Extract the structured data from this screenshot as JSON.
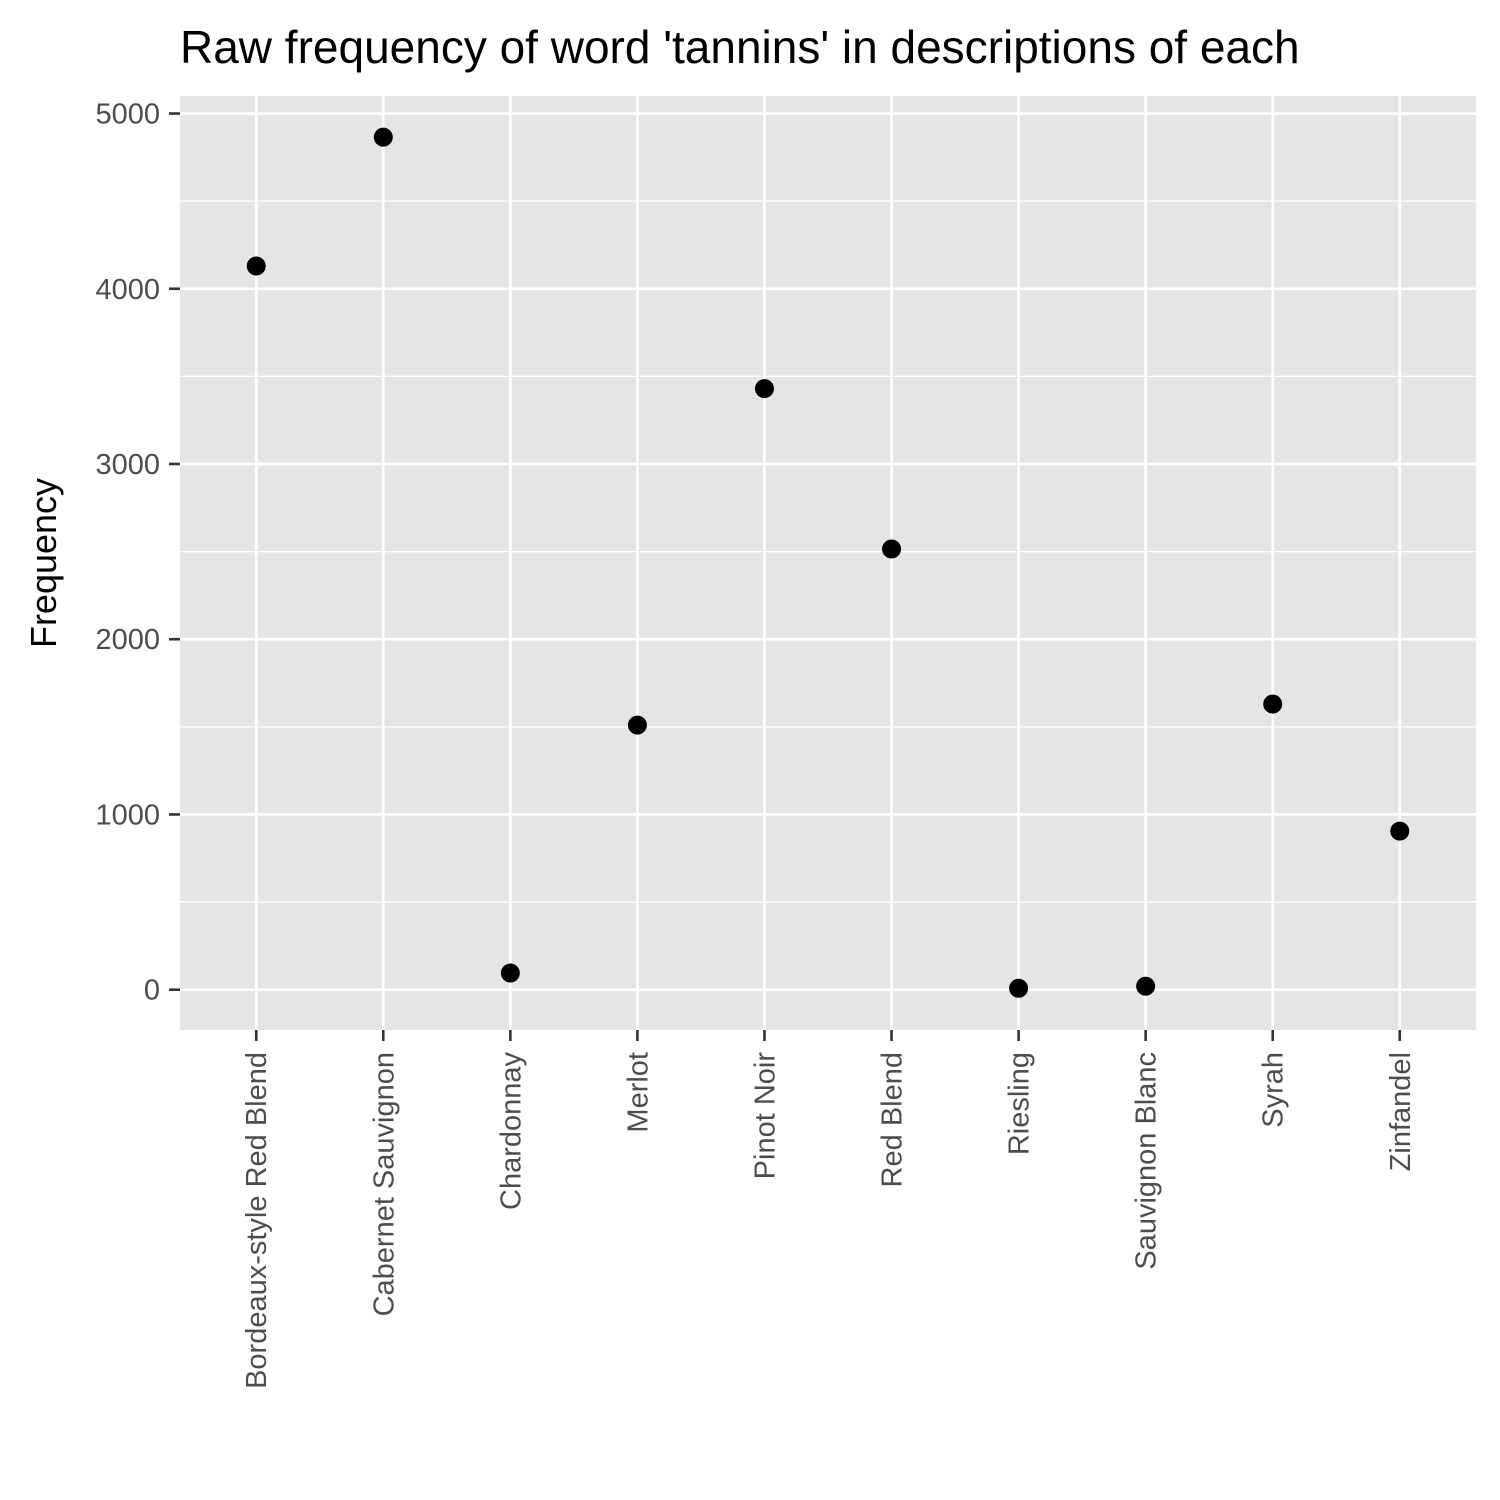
{
  "chart_data": {
    "type": "scatter",
    "title": "Raw frequency of word 'tannins' in descriptions of each",
    "xlabel": "",
    "ylabel": "Frequency",
    "categories": [
      "Bordeaux-style Red Blend",
      "Cabernet Sauvignon",
      "Chardonnay",
      "Merlot",
      "Pinot Noir",
      "Red Blend",
      "Riesling",
      "Sauvignon Blanc",
      "Syrah",
      "Zinfandel"
    ],
    "values": [
      4130,
      4865,
      95,
      1510,
      3430,
      2515,
      8,
      20,
      1630,
      905
    ],
    "y_ticks": [
      "0",
      "1000",
      "2000",
      "3000",
      "4000",
      "5000"
    ],
    "ylim": [
      -230,
      5100
    ],
    "grid": true,
    "legend": "none",
    "colors": {
      "panel_background": "#e5e5e5",
      "grid": "#ffffff",
      "point": "#000000",
      "tick_text": "#4d4d4d"
    }
  }
}
